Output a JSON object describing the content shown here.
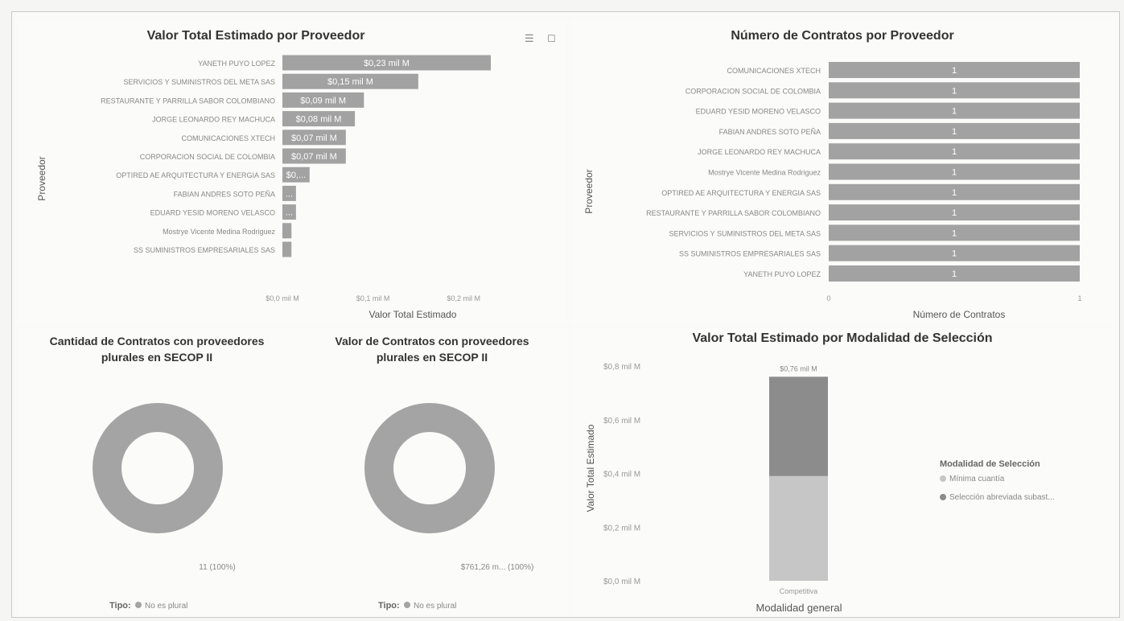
{
  "charts": {
    "valor_proveedor": {
      "title": "Valor Total Estimado por Proveedor",
      "xlabel": "Valor Total Estimado",
      "ylabel": "Proveedor",
      "ticks": [
        "$0,0 mil M",
        "$0,1 mil M",
        "$0,2 mil M"
      ],
      "filter_icon": "filter-icon",
      "expand_icon": "focus-mode-icon"
    },
    "num_contratos": {
      "title": "Número de Contratos por Proveedor",
      "xlabel": "Número de Contratos",
      "ylabel": "Proveedor",
      "ticks": [
        "0",
        "1"
      ]
    },
    "cantidad_plurales": {
      "title_line1": "Cantidad de Contratos con proveedores",
      "title_line2": "plurales en SECOP II",
      "slice_label": "11 (100%)",
      "legend_title": "Tipo:",
      "legend_item": "No es plural"
    },
    "valor_plurales": {
      "title_line1": "Valor de Contratos con proveedores",
      "title_line2": "plurales en SECOP II",
      "slice_label": "$761,26 m... (100%)",
      "legend_title": "Tipo:",
      "legend_item": "No es plural"
    },
    "modalidad": {
      "title": "Valor Total Estimado por Modalidad de Selección",
      "ylabel": "Valor Total Estimado",
      "xlabel": "Modalidad general",
      "category": "Competitiva",
      "total_label": "$0,76 mil M",
      "ticks": [
        "$0,0 mil M",
        "$0,2 mil M",
        "$0,4 mil M",
        "$0,6 mil M",
        "$0,8 mil M"
      ],
      "legend_title": "Modalidad de Selección",
      "legend_items": [
        "Mínima cuantía",
        "Selección abreviada subast..."
      ]
    }
  },
  "colors": {
    "bar": "#a2a2a2",
    "bar_dark": "#8c8c8c",
    "bar_light": "#c6c6c6",
    "donut": "#a4a4a4"
  },
  "chart_data": [
    {
      "type": "bar",
      "orientation": "horizontal",
      "title": "Valor Total Estimado por Proveedor",
      "xlabel": "Valor Total Estimado",
      "ylabel": "Proveedor",
      "unit": "mil M",
      "categories": [
        "YANETH PUYO LOPEZ",
        "SERVICIOS Y SUMINISTROS DEL META SAS",
        "RESTAURANTE Y PARRILLA SABOR COLOMBIANO",
        "JORGE LEONARDO REY MACHUCA",
        "COMUNICACIONES XTECH",
        "CORPORACION SOCIAL DE COLOMBIA",
        "OPTIRED AE ARQUITECTURA Y ENERGIA SAS",
        "FABIAN ANDRES SOTO PEÑA",
        "EDUARD YESID MORENO VELASCO",
        "Mostrye Vicente Medina Rodriguez",
        "SS SUMINISTROS EMPRESARIALES SAS"
      ],
      "values": [
        0.23,
        0.15,
        0.09,
        0.08,
        0.07,
        0.07,
        0.03,
        0.015,
        0.015,
        0.01,
        0.01
      ],
      "value_labels": [
        "$0,23 mil M",
        "$0,15 mil M",
        "$0,09 mil M",
        "$0,08 mil M",
        "$0,07 mil M",
        "$0,07 mil M",
        "$0,...",
        "...",
        "...",
        "",
        ""
      ],
      "xlim": [
        0,
        0.23
      ]
    },
    {
      "type": "bar",
      "orientation": "horizontal",
      "title": "Número de Contratos por Proveedor",
      "xlabel": "Número de Contratos",
      "ylabel": "Proveedor",
      "categories": [
        "COMUNICACIONES XTECH",
        "CORPORACION SOCIAL DE COLOMBIA",
        "EDUARD YESID MORENO VELASCO",
        "FABIAN ANDRES SOTO PEÑA",
        "JORGE LEONARDO REY MACHUCA",
        "Mostrye Vicente Medina Rodriguez",
        "OPTIRED AE ARQUITECTURA Y ENERGIA SAS",
        "RESTAURANTE Y PARRILLA SABOR COLOMBIANO",
        "SERVICIOS Y SUMINISTROS DEL META SAS",
        "SS SUMINISTROS EMPRESARIALES SAS",
        "YANETH PUYO LOPEZ"
      ],
      "values": [
        1,
        1,
        1,
        1,
        1,
        1,
        1,
        1,
        1,
        1,
        1
      ],
      "value_labels": [
        "1",
        "1",
        "1",
        "1",
        "1",
        "1",
        "1",
        "1",
        "1",
        "1",
        "1"
      ],
      "xlim": [
        0,
        1
      ]
    },
    {
      "type": "pie",
      "variant": "donut",
      "title": "Cantidad de Contratos con proveedores plurales en SECOP II",
      "categories": [
        "No es plural"
      ],
      "values": [
        11
      ],
      "labels": [
        "11 (100%)"
      ]
    },
    {
      "type": "pie",
      "variant": "donut",
      "title": "Valor de Contratos con proveedores plurales en SECOP II",
      "categories": [
        "No es plural"
      ],
      "values": [
        761.26
      ],
      "labels": [
        "$761,26 m... (100%)"
      ]
    },
    {
      "type": "bar",
      "stacked": true,
      "title": "Valor Total Estimado por Modalidad de Selección",
      "xlabel": "Modalidad general",
      "ylabel": "Valor Total Estimado",
      "categories": [
        "Competitiva"
      ],
      "series": [
        {
          "name": "Mínima cuantía",
          "values": [
            0.39
          ]
        },
        {
          "name": "Selección abreviada subast...",
          "values": [
            0.37
          ]
        }
      ],
      "total_labels": [
        "$0,76 mil M"
      ],
      "ylim": [
        0,
        0.8
      ],
      "legend_position": "right"
    }
  ]
}
